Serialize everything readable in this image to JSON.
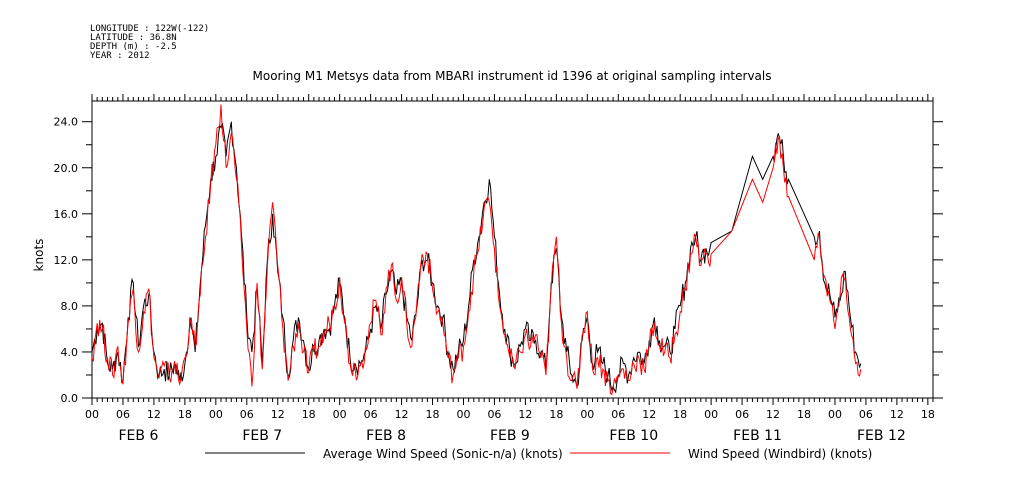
{
  "metadata": [
    "LONGITUDE : 122W(-122)",
    "LATITUDE : 36.8N",
    "DEPTH (m) : -2.5",
    "YEAR : 2012"
  ],
  "chart_data": {
    "type": "line",
    "title": "Mooring M1 Metsys data from MBARI instrument id 1396 at original sampling intervals",
    "ylabel": "knots",
    "xlabel": "",
    "ylim": [
      0,
      25.8
    ],
    "xlim_hours": [
      0,
      163
    ],
    "y_ticks": [
      "0.0",
      "4.0",
      "8.0",
      "12.0",
      "16.0",
      "20.0",
      "24.0"
    ],
    "hour_ticks": [
      "00",
      "06",
      "12",
      "18"
    ],
    "day_labels": [
      "FEB  6",
      "FEB  7",
      "FEB  8",
      "FEB  9",
      "FEB  10",
      "FEB 11",
      "FEB 12"
    ],
    "grid": false,
    "legend_position": "bottom",
    "series": [
      {
        "name": "Average Wind Speed (Sonic-n/a) (knots)",
        "color": "#000000",
        "points": [
          [
            0,
            4
          ],
          [
            1,
            6
          ],
          [
            2,
            6.5
          ],
          [
            3,
            3
          ],
          [
            4,
            2.5
          ],
          [
            5,
            4
          ],
          [
            6,
            1.5
          ],
          [
            7,
            7
          ],
          [
            8,
            10
          ],
          [
            9,
            4.5
          ],
          [
            10,
            8
          ],
          [
            11,
            9
          ],
          [
            12,
            4
          ],
          [
            13,
            2
          ],
          [
            14,
            2.5
          ],
          [
            15,
            2
          ],
          [
            16,
            3
          ],
          [
            17,
            1.5
          ],
          [
            18,
            3
          ],
          [
            19,
            7
          ],
          [
            20,
            4
          ],
          [
            21,
            10
          ],
          [
            22,
            15
          ],
          [
            23,
            19
          ],
          [
            24,
            21
          ],
          [
            25,
            23.5
          ],
          [
            26,
            21
          ],
          [
            27,
            24
          ],
          [
            28,
            20
          ],
          [
            29,
            14
          ],
          [
            30,
            7
          ],
          [
            31,
            4
          ],
          [
            32,
            9.5
          ],
          [
            33,
            3
          ],
          [
            34,
            12
          ],
          [
            35,
            16
          ],
          [
            36,
            11
          ],
          [
            37,
            7
          ],
          [
            38,
            2
          ],
          [
            39,
            5
          ],
          [
            40,
            7
          ],
          [
            41,
            5
          ],
          [
            42,
            2.5
          ],
          [
            43,
            4.5
          ],
          [
            44,
            5
          ],
          [
            45,
            6
          ],
          [
            46,
            6
          ],
          [
            47,
            8
          ],
          [
            48,
            10
          ],
          [
            49,
            7
          ],
          [
            50,
            3.5
          ],
          [
            51,
            3
          ],
          [
            52,
            3
          ],
          [
            53,
            4
          ],
          [
            54,
            6
          ],
          [
            55,
            8
          ],
          [
            56,
            6
          ],
          [
            57,
            9
          ],
          [
            58,
            11
          ],
          [
            59,
            9
          ],
          [
            60,
            10
          ],
          [
            61,
            7
          ],
          [
            62,
            5
          ],
          [
            63,
            8
          ],
          [
            64,
            12
          ],
          [
            65,
            12
          ],
          [
            66,
            10
          ],
          [
            67,
            8
          ],
          [
            68,
            7
          ],
          [
            69,
            4
          ],
          [
            70,
            2.5
          ],
          [
            71,
            4
          ],
          [
            72,
            5
          ],
          [
            73,
            8
          ],
          [
            74,
            12
          ],
          [
            75,
            14
          ],
          [
            76,
            17
          ],
          [
            77,
            19
          ],
          [
            78,
            14
          ],
          [
            79,
            9
          ],
          [
            80,
            6
          ],
          [
            81,
            4
          ],
          [
            82,
            3
          ],
          [
            83,
            4.5
          ],
          [
            84,
            6
          ],
          [
            85,
            5
          ],
          [
            86,
            5
          ],
          [
            87,
            4
          ],
          [
            88,
            2.5
          ],
          [
            89,
            10
          ],
          [
            90,
            13
          ],
          [
            91,
            7
          ],
          [
            92,
            4
          ],
          [
            93,
            2
          ],
          [
            94,
            1
          ],
          [
            95,
            5
          ],
          [
            96,
            7
          ],
          [
            97,
            3
          ],
          [
            98,
            4
          ],
          [
            99,
            3
          ],
          [
            100,
            2
          ],
          [
            101,
            1
          ],
          [
            102,
            2
          ],
          [
            103,
            3
          ],
          [
            104,
            2
          ],
          [
            105,
            3.5
          ],
          [
            106,
            4
          ],
          [
            107,
            3
          ],
          [
            108,
            5
          ],
          [
            109,
            7
          ],
          [
            110,
            5
          ],
          [
            111,
            4.5
          ],
          [
            112,
            4
          ],
          [
            113,
            6
          ],
          [
            114,
            8
          ],
          [
            115,
            10
          ],
          [
            116,
            13
          ],
          [
            117,
            14
          ],
          [
            118,
            12
          ],
          [
            119,
            13
          ],
          [
            120,
            13.5
          ],
          [
            124,
            14.5
          ],
          [
            128,
            21
          ],
          [
            130,
            19
          ],
          [
            132,
            21
          ],
          [
            133,
            23
          ],
          [
            134,
            21
          ],
          [
            135,
            19
          ],
          [
            140,
            14
          ],
          [
            141,
            14.5
          ],
          [
            142,
            10
          ],
          [
            143,
            9
          ],
          [
            144,
            7
          ],
          [
            145,
            8.5
          ],
          [
            146,
            11
          ],
          [
            147,
            7
          ],
          [
            148,
            4
          ],
          [
            149,
            3
          ]
        ]
      },
      {
        "name": "Wind Speed (Windbird) (knots)",
        "color": "#ff0000",
        "points": [
          [
            0,
            3.5
          ],
          [
            1,
            6.5
          ],
          [
            2,
            6
          ],
          [
            3,
            3.5
          ],
          [
            4,
            2
          ],
          [
            5,
            4.5
          ],
          [
            6,
            1.2
          ],
          [
            7,
            6.5
          ],
          [
            8,
            9.5
          ],
          [
            9,
            4
          ],
          [
            10,
            7.5
          ],
          [
            11,
            9.5
          ],
          [
            12,
            3.5
          ],
          [
            13,
            1.8
          ],
          [
            14,
            2.8
          ],
          [
            15,
            1.8
          ],
          [
            16,
            3.2
          ],
          [
            17,
            1.2
          ],
          [
            18,
            3.5
          ],
          [
            19,
            6.5
          ],
          [
            20,
            4.5
          ],
          [
            21,
            9
          ],
          [
            22,
            14
          ],
          [
            23,
            18.5
          ],
          [
            24,
            22
          ],
          [
            25,
            25.5
          ],
          [
            26,
            20
          ],
          [
            27,
            23
          ],
          [
            28,
            19
          ],
          [
            29,
            13
          ],
          [
            30,
            6
          ],
          [
            31,
            1
          ],
          [
            32,
            10
          ],
          [
            33,
            2.5
          ],
          [
            34,
            11.5
          ],
          [
            35,
            17
          ],
          [
            36,
            11.5
          ],
          [
            37,
            6
          ],
          [
            38,
            1.5
          ],
          [
            39,
            4.5
          ],
          [
            40,
            6.5
          ],
          [
            41,
            4
          ],
          [
            42,
            2.2
          ],
          [
            43,
            4
          ],
          [
            44,
            4.5
          ],
          [
            45,
            5.5
          ],
          [
            46,
            6.5
          ],
          [
            47,
            8
          ],
          [
            48,
            10.5
          ],
          [
            49,
            6.5
          ],
          [
            50,
            3
          ],
          [
            51,
            2.5
          ],
          [
            52,
            2.8
          ],
          [
            53,
            4.5
          ],
          [
            54,
            6.5
          ],
          [
            55,
            8.5
          ],
          [
            56,
            5.5
          ],
          [
            57,
            9.5
          ],
          [
            58,
            11.5
          ],
          [
            59,
            8.5
          ],
          [
            60,
            10.5
          ],
          [
            61,
            6.5
          ],
          [
            62,
            4.5
          ],
          [
            63,
            8.5
          ],
          [
            64,
            12.5
          ],
          [
            65,
            12.5
          ],
          [
            66,
            9.5
          ],
          [
            67,
            7.5
          ],
          [
            68,
            6.5
          ],
          [
            69,
            3.5
          ],
          [
            70,
            2
          ],
          [
            71,
            3.5
          ],
          [
            72,
            4.5
          ],
          [
            73,
            7.5
          ],
          [
            74,
            11
          ],
          [
            75,
            13
          ],
          [
            76,
            16.5
          ],
          [
            77,
            17
          ],
          [
            78,
            13
          ],
          [
            79,
            8
          ],
          [
            80,
            5.5
          ],
          [
            81,
            3.5
          ],
          [
            82,
            2.5
          ],
          [
            83,
            4
          ],
          [
            84,
            5.5
          ],
          [
            85,
            4.5
          ],
          [
            86,
            5.5
          ],
          [
            87,
            3.5
          ],
          [
            88,
            2
          ],
          [
            89,
            9.5
          ],
          [
            90,
            14
          ],
          [
            91,
            6.5
          ],
          [
            92,
            3.5
          ],
          [
            93,
            1.5
          ],
          [
            94,
            0.8
          ],
          [
            95,
            5.5
          ],
          [
            96,
            7.5
          ],
          [
            97,
            2.5
          ],
          [
            98,
            3.5
          ],
          [
            99,
            2.5
          ],
          [
            100,
            1.5
          ],
          [
            101,
            0.8
          ],
          [
            102,
            1.8
          ],
          [
            103,
            2.5
          ],
          [
            104,
            1.5
          ],
          [
            105,
            3
          ],
          [
            106,
            3.5
          ],
          [
            107,
            2.5
          ],
          [
            108,
            4.5
          ],
          [
            109,
            6.5
          ],
          [
            110,
            4.5
          ],
          [
            111,
            4
          ],
          [
            112,
            3.5
          ],
          [
            113,
            5.5
          ],
          [
            114,
            7.5
          ],
          [
            115,
            9.5
          ],
          [
            116,
            12.5
          ],
          [
            117,
            14
          ],
          [
            118,
            11.5
          ],
          [
            119,
            12.5
          ],
          [
            120,
            12.5
          ],
          [
            124,
            14.5
          ],
          [
            128,
            19
          ],
          [
            130,
            17
          ],
          [
            132,
            20
          ],
          [
            133,
            22.5
          ],
          [
            134,
            20
          ],
          [
            135,
            17.5
          ],
          [
            140,
            12
          ],
          [
            141,
            14
          ],
          [
            142,
            10.5
          ],
          [
            143,
            8.5
          ],
          [
            144,
            6
          ],
          [
            145,
            9
          ],
          [
            146,
            10.5
          ],
          [
            147,
            6
          ],
          [
            148,
            3
          ],
          [
            149,
            2.5
          ]
        ]
      }
    ]
  }
}
